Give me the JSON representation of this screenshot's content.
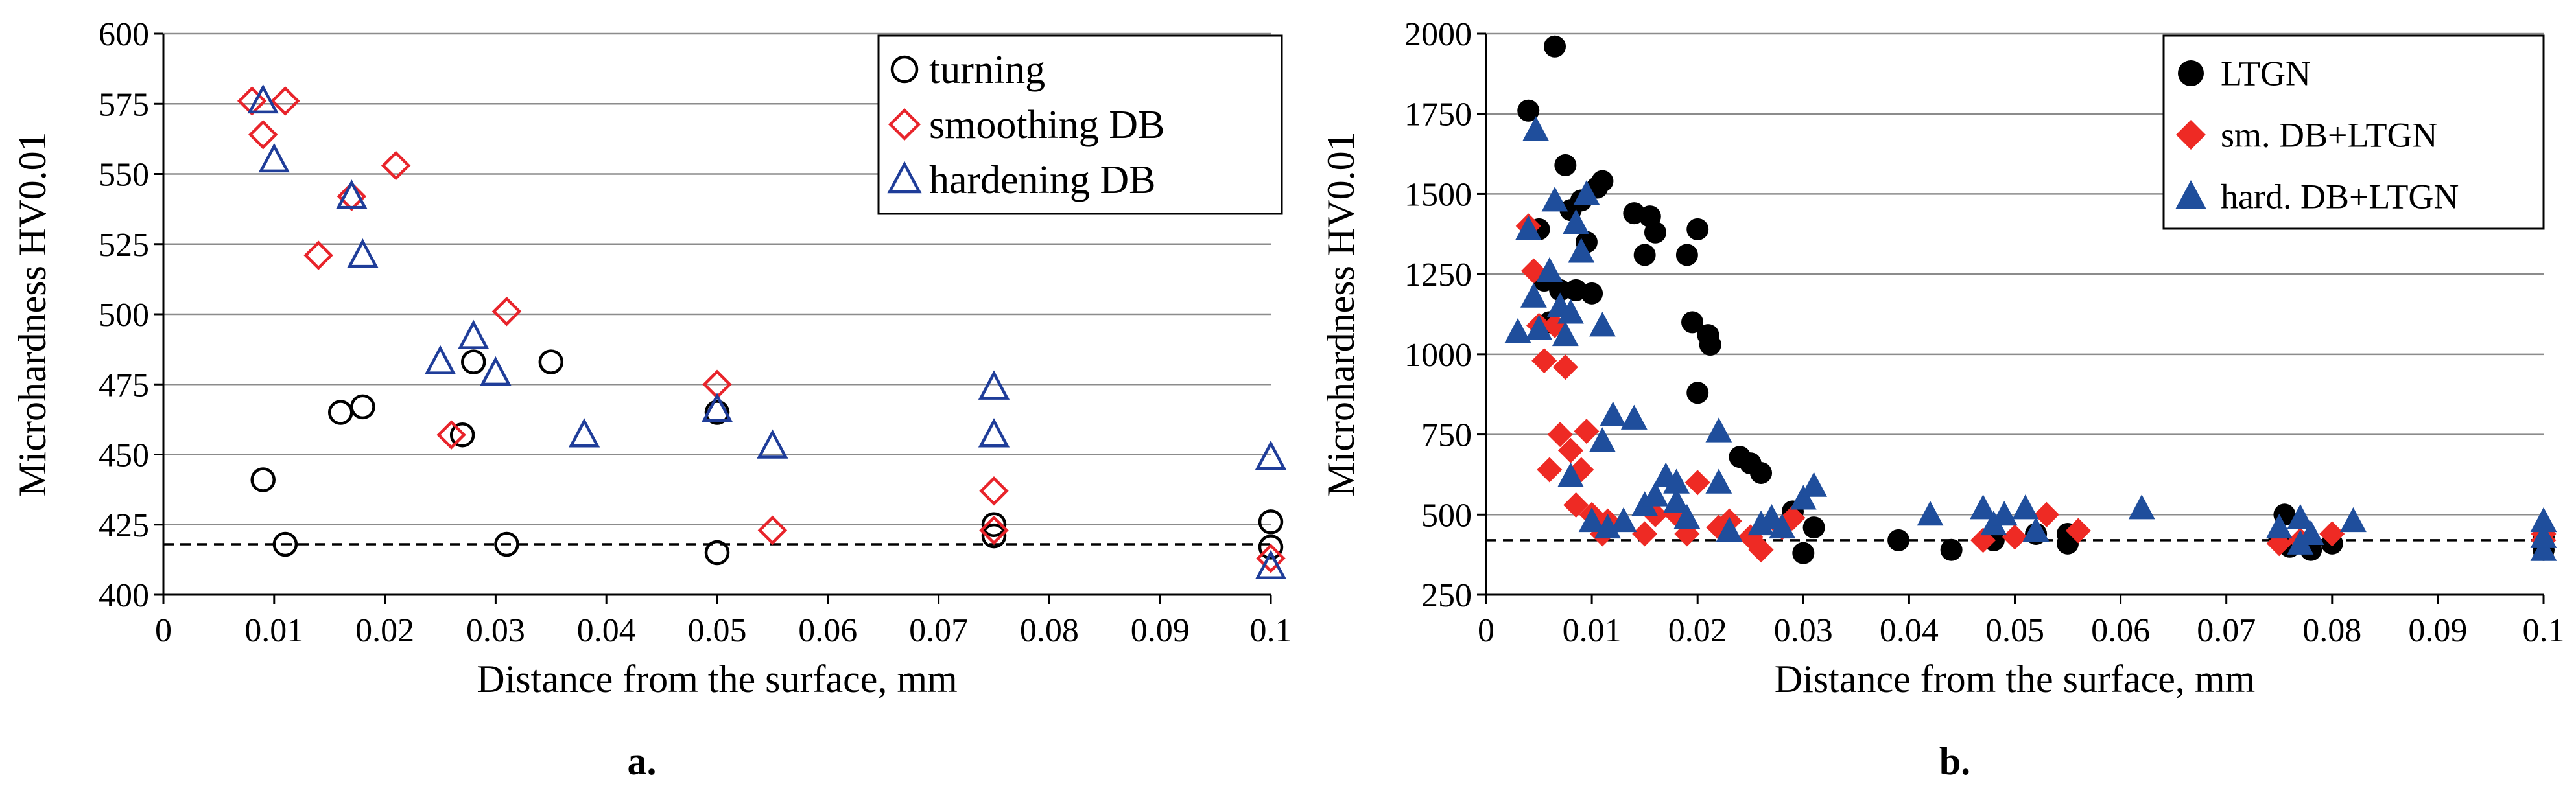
{
  "chart_data": [
    {
      "type": "scatter",
      "panel_label": "a.",
      "xlabel": "Distance from the surface, mm",
      "ylabel": "Microhardness HV0.01",
      "xlim": [
        0,
        0.1
      ],
      "ylim": [
        400,
        600
      ],
      "x_ticks": [
        0,
        0.01,
        0.02,
        0.03,
        0.04,
        0.05,
        0.06,
        0.07,
        0.08,
        0.09,
        0.1
      ],
      "x_tick_labels": [
        "0",
        "0.01",
        "0.02",
        "0.03",
        "0.04",
        "0.05",
        "0.06",
        "0.07",
        "0.08",
        "0.09",
        "0.1"
      ],
      "y_ticks": [
        400,
        425,
        450,
        475,
        500,
        525,
        550,
        575,
        600
      ],
      "y_tick_labels": [
        "400",
        "425",
        "450",
        "475",
        "500",
        "525",
        "550",
        "575",
        "600"
      ],
      "grid": "horizontal",
      "reference_line": 418,
      "legend_position": "top-right",
      "series": [
        {
          "name": "turning",
          "marker": "circle-open",
          "color": "#000000",
          "points": [
            [
              0.009,
              441
            ],
            [
              0.011,
              418
            ],
            [
              0.016,
              465
            ],
            [
              0.018,
              467
            ],
            [
              0.027,
              457
            ],
            [
              0.028,
              483
            ],
            [
              0.031,
              418
            ],
            [
              0.035,
              483
            ],
            [
              0.05,
              415
            ],
            [
              0.05,
              465
            ],
            [
              0.075,
              421
            ],
            [
              0.075,
              425
            ],
            [
              0.1,
              426
            ],
            [
              0.1,
              417
            ]
          ]
        },
        {
          "name": "smoothing DB",
          "marker": "diamond-open",
          "color": "#e8242b",
          "points": [
            [
              0.008,
              576
            ],
            [
              0.009,
              564
            ],
            [
              0.011,
              576
            ],
            [
              0.014,
              521
            ],
            [
              0.017,
              542
            ],
            [
              0.021,
              553
            ],
            [
              0.026,
              457
            ],
            [
              0.031,
              501
            ],
            [
              0.05,
              475
            ],
            [
              0.055,
              423
            ],
            [
              0.075,
              437
            ],
            [
              0.075,
              423
            ],
            [
              0.1,
              413
            ]
          ]
        },
        {
          "name": "hardening DB",
          "marker": "triangle-open",
          "color": "#1f3d99",
          "points": [
            [
              0.009,
              576
            ],
            [
              0.01,
              555
            ],
            [
              0.017,
              542
            ],
            [
              0.018,
              521
            ],
            [
              0.025,
              483
            ],
            [
              0.028,
              492
            ],
            [
              0.03,
              479
            ],
            [
              0.038,
              457
            ],
            [
              0.05,
              466
            ],
            [
              0.055,
              453
            ],
            [
              0.075,
              474
            ],
            [
              0.075,
              457
            ],
            [
              0.1,
              449
            ],
            [
              0.1,
              410
            ]
          ]
        }
      ]
    },
    {
      "type": "scatter",
      "panel_label": "b.",
      "xlabel": "Distance from the surface, mm",
      "ylabel": "Microhardness HV0.01",
      "xlim": [
        0,
        0.1
      ],
      "ylim": [
        250,
        2000
      ],
      "x_ticks": [
        0,
        0.01,
        0.02,
        0.03,
        0.04,
        0.05,
        0.06,
        0.07,
        0.08,
        0.09,
        0.1
      ],
      "x_tick_labels": [
        "0",
        "0.01",
        "0.02",
        "0.03",
        "0.04",
        "0.05",
        "0.06",
        "0.07",
        "0.08",
        "0.09",
        "0.1"
      ],
      "y_ticks": [
        250,
        500,
        750,
        1000,
        1250,
        1500,
        1750,
        2000
      ],
      "y_tick_labels": [
        "250",
        "500",
        "750",
        "1000",
        "1250",
        "1500",
        "1750",
        "2000"
      ],
      "grid": "horizontal",
      "reference_line": 420,
      "legend_position": "top-right",
      "series": [
        {
          "name": "LTGN",
          "marker": "circle-filled",
          "color": "#000000",
          "points": [
            [
              0.004,
              1760
            ],
            [
              0.005,
              1390
            ],
            [
              0.0055,
              1230
            ],
            [
              0.006,
              1100
            ],
            [
              0.0065,
              1960
            ],
            [
              0.007,
              1200
            ],
            [
              0.0075,
              1590
            ],
            [
              0.008,
              1450
            ],
            [
              0.0085,
              1200
            ],
            [
              0.009,
              1480
            ],
            [
              0.0095,
              1350
            ],
            [
              0.01,
              1190
            ],
            [
              0.0105,
              1520
            ],
            [
              0.011,
              1540
            ],
            [
              0.014,
              1440
            ],
            [
              0.015,
              1310
            ],
            [
              0.0155,
              1430
            ],
            [
              0.016,
              1380
            ],
            [
              0.019,
              1310
            ],
            [
              0.0195,
              1100
            ],
            [
              0.02,
              1390
            ],
            [
              0.02,
              880
            ],
            [
              0.021,
              1060
            ],
            [
              0.0212,
              1030
            ],
            [
              0.024,
              680
            ],
            [
              0.025,
              660
            ],
            [
              0.026,
              630
            ],
            [
              0.029,
              510
            ],
            [
              0.03,
              380
            ],
            [
              0.031,
              460
            ],
            [
              0.039,
              420
            ],
            [
              0.044,
              390
            ],
            [
              0.048,
              420
            ],
            [
              0.052,
              440
            ],
            [
              0.055,
              410
            ],
            [
              0.055,
              440
            ],
            [
              0.075,
              430
            ],
            [
              0.0755,
              500
            ],
            [
              0.076,
              400
            ],
            [
              0.078,
              390
            ],
            [
              0.08,
              410
            ],
            [
              0.1,
              390
            ],
            [
              0.1,
              430
            ]
          ]
        },
        {
          "name": "sm. DB+LTGN",
          "marker": "diamond-filled",
          "color": "#ee2a24",
          "points": [
            [
              0.004,
              1400
            ],
            [
              0.0045,
              1260
            ],
            [
              0.005,
              1090
            ],
            [
              0.0055,
              980
            ],
            [
              0.006,
              640
            ],
            [
              0.0065,
              1090
            ],
            [
              0.007,
              750
            ],
            [
              0.0075,
              960
            ],
            [
              0.008,
              700
            ],
            [
              0.0085,
              530
            ],
            [
              0.009,
              640
            ],
            [
              0.0095,
              760
            ],
            [
              0.01,
              500
            ],
            [
              0.011,
              440
            ],
            [
              0.0115,
              480
            ],
            [
              0.015,
              440
            ],
            [
              0.016,
              500
            ],
            [
              0.018,
              500
            ],
            [
              0.019,
              440
            ],
            [
              0.02,
              600
            ],
            [
              0.022,
              460
            ],
            [
              0.023,
              480
            ],
            [
              0.025,
              430
            ],
            [
              0.026,
              390
            ],
            [
              0.028,
              460
            ],
            [
              0.029,
              490
            ],
            [
              0.047,
              420
            ],
            [
              0.05,
              430
            ],
            [
              0.053,
              500
            ],
            [
              0.056,
              450
            ],
            [
              0.075,
              410
            ],
            [
              0.077,
              420
            ],
            [
              0.08,
              440
            ],
            [
              0.1,
              420
            ],
            [
              0.1,
              440
            ]
          ]
        },
        {
          "name": "hard. DB+LTGN",
          "marker": "triangle-filled",
          "color": "#1f4e9c",
          "points": [
            [
              0.003,
              1070
            ],
            [
              0.004,
              1390
            ],
            [
              0.0045,
              1180
            ],
            [
              0.0047,
              1700
            ],
            [
              0.005,
              1080
            ],
            [
              0.006,
              1260
            ],
            [
              0.0065,
              1480
            ],
            [
              0.007,
              1150
            ],
            [
              0.0075,
              1060
            ],
            [
              0.008,
              620
            ],
            [
              0.008,
              1130
            ],
            [
              0.0085,
              1410
            ],
            [
              0.009,
              1320
            ],
            [
              0.0095,
              1500
            ],
            [
              0.01,
              480
            ],
            [
              0.011,
              1090
            ],
            [
              0.011,
              730
            ],
            [
              0.0115,
              460
            ],
            [
              0.012,
              810
            ],
            [
              0.013,
              480
            ],
            [
              0.014,
              800
            ],
            [
              0.015,
              530
            ],
            [
              0.016,
              560
            ],
            [
              0.017,
              620
            ],
            [
              0.018,
              600
            ],
            [
              0.018,
              540
            ],
            [
              0.019,
              490
            ],
            [
              0.022,
              760
            ],
            [
              0.022,
              600
            ],
            [
              0.023,
              450
            ],
            [
              0.026,
              470
            ],
            [
              0.027,
              490
            ],
            [
              0.028,
              460
            ],
            [
              0.03,
              550
            ],
            [
              0.031,
              590
            ],
            [
              0.042,
              500
            ],
            [
              0.047,
              520
            ],
            [
              0.048,
              470
            ],
            [
              0.049,
              500
            ],
            [
              0.051,
              520
            ],
            [
              0.052,
              450
            ],
            [
              0.062,
              520
            ],
            [
              0.075,
              460
            ],
            [
              0.077,
              490
            ],
            [
              0.077,
              410
            ],
            [
              0.078,
              440
            ],
            [
              0.082,
              480
            ],
            [
              0.1,
              390
            ],
            [
              0.1,
              480
            ],
            [
              0.1,
              430
            ]
          ]
        }
      ]
    }
  ]
}
